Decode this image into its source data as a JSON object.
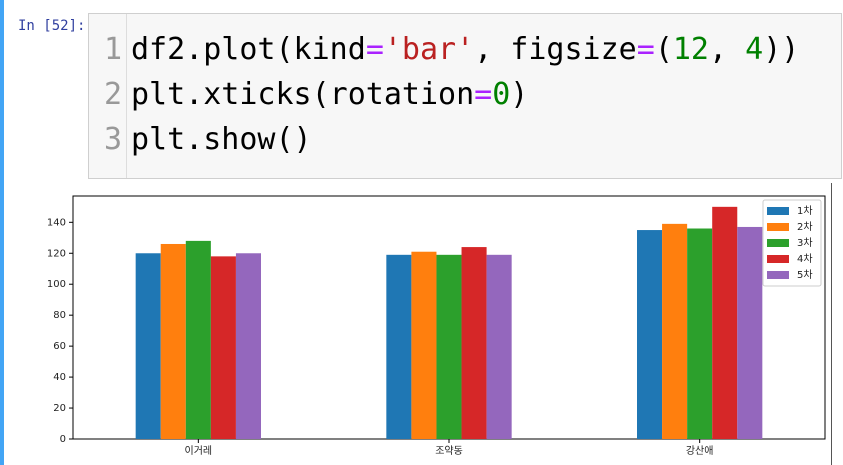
{
  "prompt": "In [52]:",
  "code": [
    {
      "number": "1",
      "tokens": [
        "df2.plot(kind",
        "=",
        "'bar'",
        ", figsize",
        "=",
        "(",
        "12",
        ", ",
        "4",
        "))"
      ]
    },
    {
      "number": "2",
      "tokens": [
        "plt.xticks(rotation",
        "=",
        "0",
        ")"
      ]
    },
    {
      "number": "3",
      "tokens": [
        "plt.show()"
      ]
    }
  ],
  "chart_data": {
    "type": "bar",
    "categories": [
      "이거레",
      "조약동",
      "강산애"
    ],
    "series": [
      {
        "name": "1차",
        "color": "#1f77b4",
        "values": [
          120,
          119,
          135
        ]
      },
      {
        "name": "2차",
        "color": "#ff7f0e",
        "values": [
          126,
          121,
          139
        ]
      },
      {
        "name": "3차",
        "color": "#2ca02c",
        "values": [
          128,
          119,
          136
        ]
      },
      {
        "name": "4차",
        "color": "#d62728",
        "values": [
          118,
          124,
          150
        ]
      },
      {
        "name": "5차",
        "color": "#9467bd",
        "values": [
          120,
          119,
          137
        ]
      }
    ],
    "ylim": [
      0,
      157
    ],
    "yticks": [
      0,
      20,
      40,
      60,
      80,
      100,
      120,
      140
    ],
    "legend": "upper right"
  }
}
